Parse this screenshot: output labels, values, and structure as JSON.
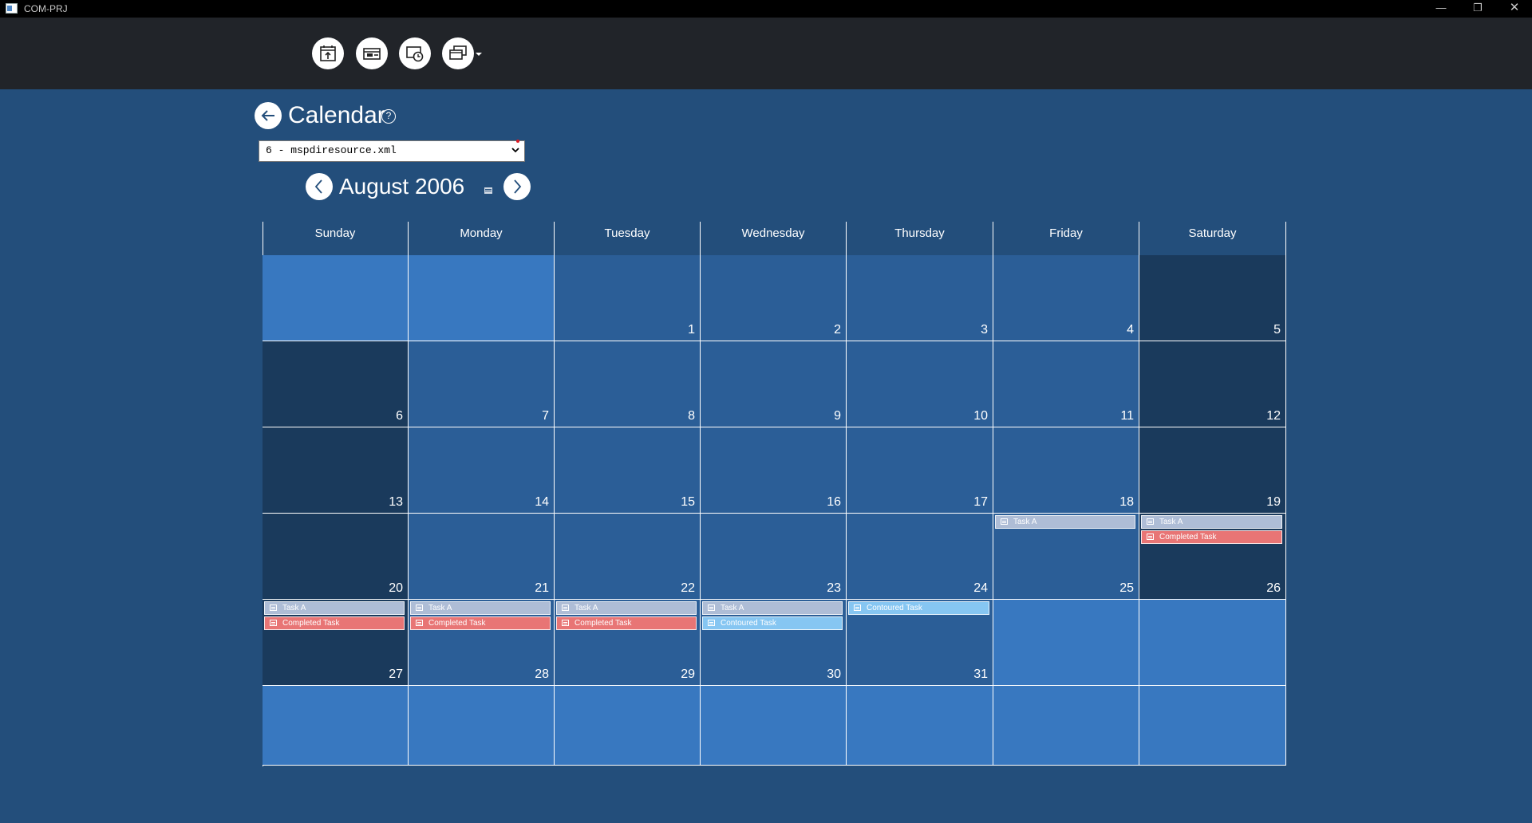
{
  "window": {
    "title": "COM-PRJ",
    "minimize": "—",
    "maximize": "❐",
    "close": "✕"
  },
  "page": {
    "title": "Calendar",
    "help": "?"
  },
  "resource_select": {
    "value": "6 - mspdiresource.xml"
  },
  "month_title": "August 2006",
  "weekdays": [
    "Sunday",
    "Monday",
    "Tuesday",
    "Wednesday",
    "Thursday",
    "Friday",
    "Saturday"
  ],
  "weeks": [
    [
      {
        "day": ""
      },
      {
        "day": ""
      },
      {
        "day": "1"
      },
      {
        "day": "2"
      },
      {
        "day": "3"
      },
      {
        "day": "4"
      },
      {
        "day": "5"
      }
    ],
    [
      {
        "day": "6"
      },
      {
        "day": "7"
      },
      {
        "day": "8"
      },
      {
        "day": "9"
      },
      {
        "day": "10"
      },
      {
        "day": "11"
      },
      {
        "day": "12"
      }
    ],
    [
      {
        "day": "13"
      },
      {
        "day": "14"
      },
      {
        "day": "15"
      },
      {
        "day": "16"
      },
      {
        "day": "17"
      },
      {
        "day": "18"
      },
      {
        "day": "19"
      }
    ],
    [
      {
        "day": "20"
      },
      {
        "day": "21"
      },
      {
        "day": "22"
      },
      {
        "day": "23"
      },
      {
        "day": "24"
      },
      {
        "day": "25",
        "tasks": [
          {
            "label": "Task A",
            "kind": "task-a"
          }
        ]
      },
      {
        "day": "26",
        "tasks": [
          {
            "label": "Task A",
            "kind": "task-a"
          },
          {
            "label": "Completed Task",
            "kind": "completed"
          }
        ]
      }
    ],
    [
      {
        "day": "27",
        "tasks": [
          {
            "label": "Task A",
            "kind": "task-a"
          },
          {
            "label": "Completed Task",
            "kind": "completed"
          }
        ]
      },
      {
        "day": "28",
        "tasks": [
          {
            "label": "Task A",
            "kind": "task-a"
          },
          {
            "label": "Completed Task",
            "kind": "completed"
          }
        ]
      },
      {
        "day": "29",
        "tasks": [
          {
            "label": "Task A",
            "kind": "task-a"
          },
          {
            "label": "Completed Task",
            "kind": "completed"
          }
        ]
      },
      {
        "day": "30",
        "tasks": [
          {
            "label": "Task A",
            "kind": "task-a"
          },
          {
            "label": "Contoured Task",
            "kind": "contoured"
          }
        ]
      },
      {
        "day": "31",
        "tasks": [
          {
            "label": "Contoured Task",
            "kind": "contoured"
          }
        ]
      },
      {
        "day": ""
      },
      {
        "day": ""
      }
    ],
    [
      {
        "day": ""
      },
      {
        "day": ""
      },
      {
        "day": ""
      },
      {
        "day": ""
      },
      {
        "day": ""
      },
      {
        "day": ""
      },
      {
        "day": ""
      }
    ]
  ]
}
